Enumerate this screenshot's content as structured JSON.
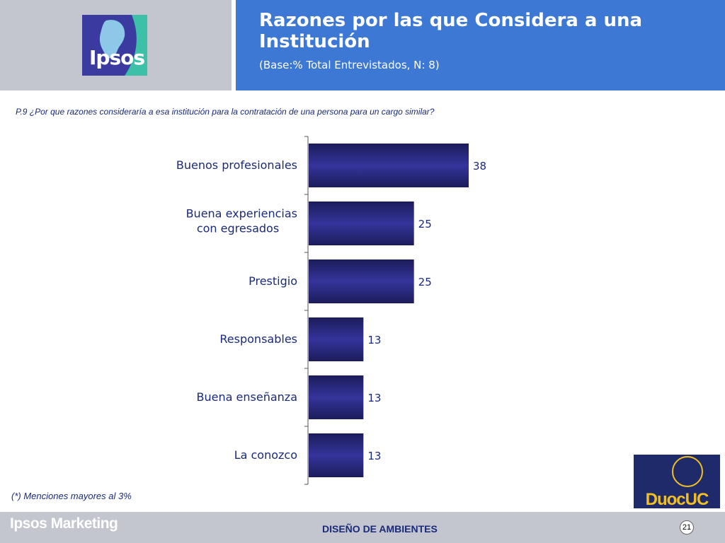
{
  "header": {
    "logo_text": "Ipsos",
    "title": "Razones por las que Considera a una Institución",
    "subtitle": "(Base:% Total Entrevistados, N: 8)"
  },
  "question": "P.9 ¿Por que razones consideraría a esa institución para la contratación de una persona para un cargo similar?",
  "footnote": "(*) Menciones mayores al 3%",
  "footer": {
    "brand": "Ipsos Marketing",
    "center": "DISEÑO DE AMBIENTES",
    "page": "21"
  },
  "duoc_logo_text": "DuocUC",
  "colors": {
    "header_blue": "#3c78d4",
    "header_gray": "#c4c6cf",
    "bar_dark": "#1c1c5a",
    "bar_mid": "#34349c",
    "text_navy": "#1a2a7a"
  },
  "chart_data": {
    "type": "bar",
    "orientation": "horizontal",
    "categories": [
      [
        "Buenos profesionales"
      ],
      [
        "Buena experiencias",
        "con egresados"
      ],
      [
        "Prestigio"
      ],
      [
        "Responsables"
      ],
      [
        "Buena enseñanza"
      ],
      [
        "La conozco"
      ]
    ],
    "values": [
      38,
      25,
      25,
      13,
      13,
      13
    ],
    "value_labels": [
      "38",
      "25",
      "25",
      "13",
      "13",
      "13"
    ],
    "xlim": [
      0,
      100
    ],
    "grid": false,
    "legend": "none"
  }
}
